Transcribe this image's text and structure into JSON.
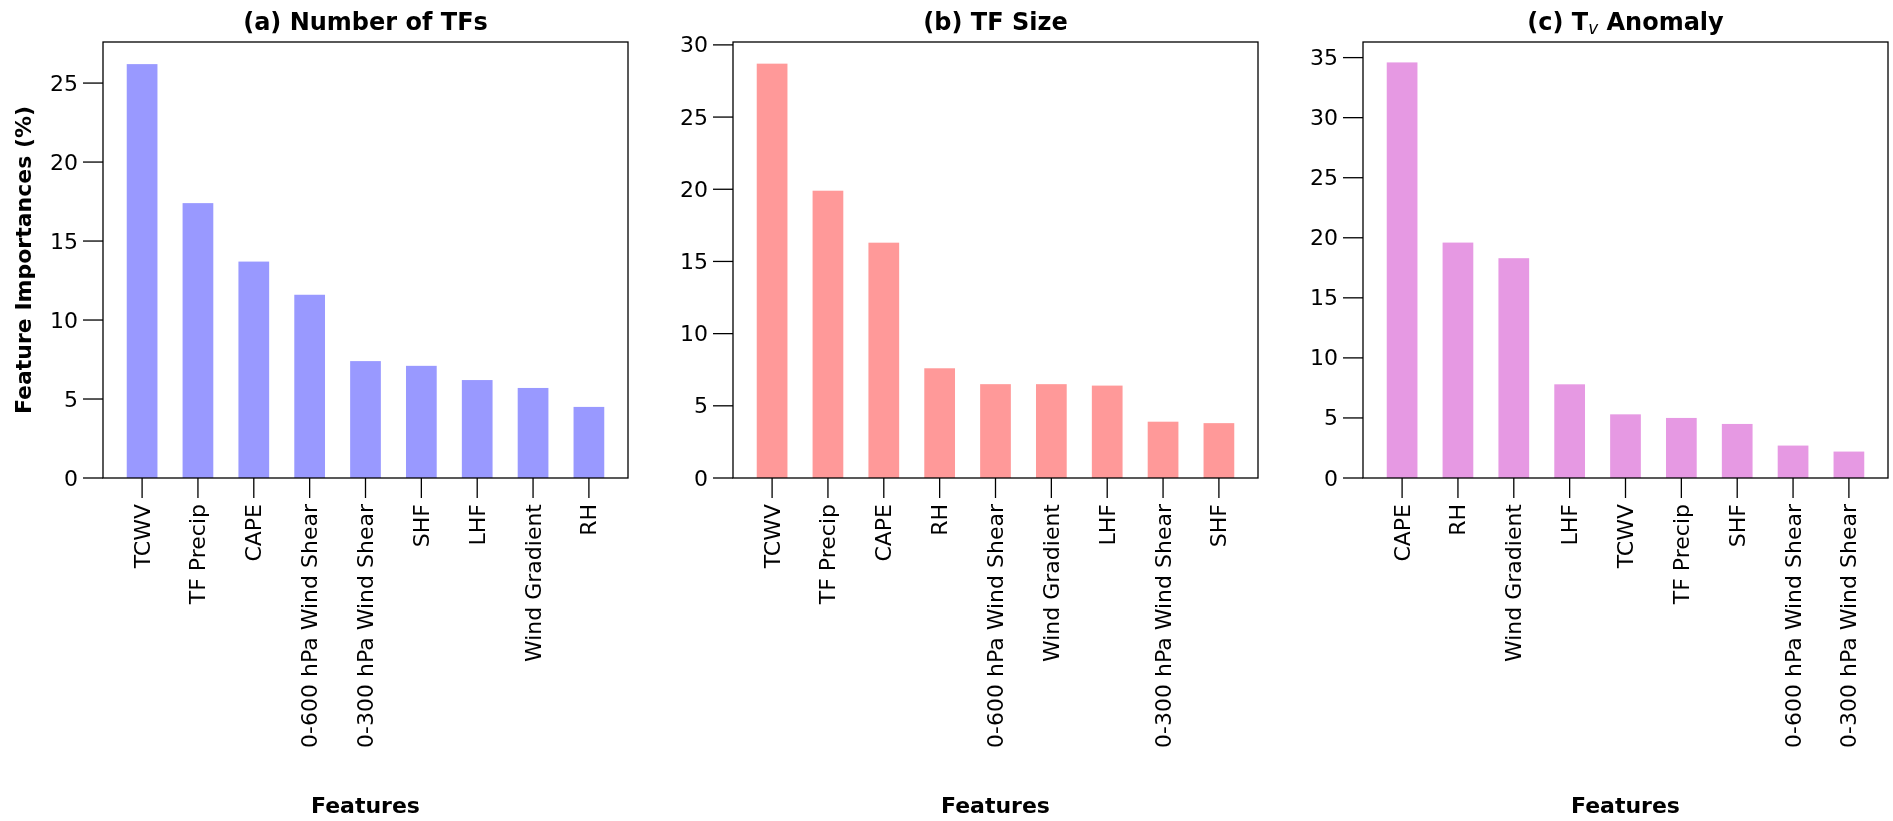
{
  "chart_data": [
    {
      "type": "bar",
      "title": "(a) Number of TFs",
      "xlabel": "Features",
      "ylabel": "Feature Importances (%)",
      "categories": [
        "TCWV",
        "TF Precip",
        "CAPE",
        "0-600 hPa Wind Shear",
        "0-300 hPa Wind Shear",
        "SHF",
        "LHF",
        "Wind Gradient",
        "RH"
      ],
      "values": [
        26.2,
        17.4,
        13.7,
        11.6,
        7.4,
        7.1,
        6.2,
        5.7,
        4.5
      ],
      "color": "#9999ff",
      "ylim": [
        0,
        27.6
      ],
      "yticks": [
        0,
        5,
        10,
        15,
        20,
        25
      ]
    },
    {
      "type": "bar",
      "title": "(b) TF Size",
      "xlabel": "Features",
      "categories": [
        "TCWV",
        "TF Precip",
        "CAPE",
        "RH",
        "0-600 hPa Wind Shear",
        "Wind Gradient",
        "LHF",
        "0-300 hPa Wind Shear",
        "SHF"
      ],
      "values": [
        28.7,
        19.9,
        16.3,
        7.6,
        6.5,
        6.5,
        6.4,
        3.9,
        3.8
      ],
      "color": "#ff9999",
      "ylim": [
        0,
        30.2
      ],
      "yticks": [
        0,
        5,
        10,
        15,
        20,
        25,
        30
      ]
    },
    {
      "type": "bar",
      "title": "(c) T$_{v}$ Anomaly",
      "xlabel": "Features",
      "categories": [
        "CAPE",
        "RH",
        "Wind Gradient",
        "LHF",
        "TCWV",
        "TF Precip",
        "SHF",
        "0-600 hPa Wind Shear",
        "0-300 hPa Wind Shear"
      ],
      "values": [
        34.6,
        19.6,
        18.3,
        7.8,
        5.3,
        5.0,
        4.5,
        2.7,
        2.2
      ],
      "color": "#e699e3",
      "ylim": [
        0,
        36.3
      ],
      "yticks": [
        0,
        5,
        10,
        15,
        20,
        25,
        30,
        35
      ]
    }
  ]
}
